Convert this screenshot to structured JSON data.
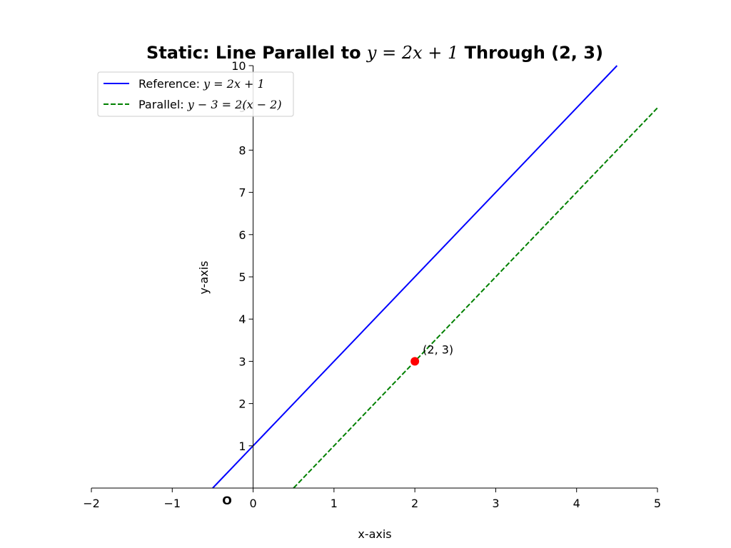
{
  "chart_data": {
    "type": "line",
    "title": "Static: Line Parallel to y = 2x + 1 Through (2, 3)",
    "title_parts": {
      "before": "Static: Line Parallel to ",
      "math": "y = 2x + 1",
      "after": " Through (2, 3)"
    },
    "xlabel": "x-axis",
    "ylabel": "y-axis",
    "xlim": [
      -2,
      5
    ],
    "ylim": [
      0,
      10
    ],
    "x_ticks": [
      -2,
      -1,
      0,
      1,
      2,
      3,
      4,
      5
    ],
    "x_tick_labels": [
      "−2",
      "−1",
      "0",
      "1",
      "2",
      "3",
      "4",
      "5"
    ],
    "y_ticks": [
      1,
      2,
      3,
      4,
      5,
      6,
      7,
      8,
      9,
      10
    ],
    "y_tick_labels": [
      "1",
      "2",
      "3",
      "4",
      "5",
      "6",
      "7",
      "8",
      "9",
      "10"
    ],
    "origin_label": "O",
    "grid": false,
    "legend_position": "top-left",
    "series": [
      {
        "name": "Reference: y = 2x + 1",
        "legend_prefix": "Reference: ",
        "legend_math": "y = 2x + 1",
        "color": "#0000ff",
        "style": "solid",
        "slope": 2,
        "intercept": 1
      },
      {
        "name": "Parallel: y − 3 = 2(x − 2)",
        "legend_prefix": "Parallel: ",
        "legend_math": "y − 3 = 2(x − 2)",
        "color": "#008000",
        "style": "dashed",
        "slope": 2,
        "intercept": -1
      }
    ],
    "points": [
      {
        "x": 2,
        "y": 3,
        "label": "(2, 3)",
        "color": "#ff0000"
      }
    ]
  }
}
